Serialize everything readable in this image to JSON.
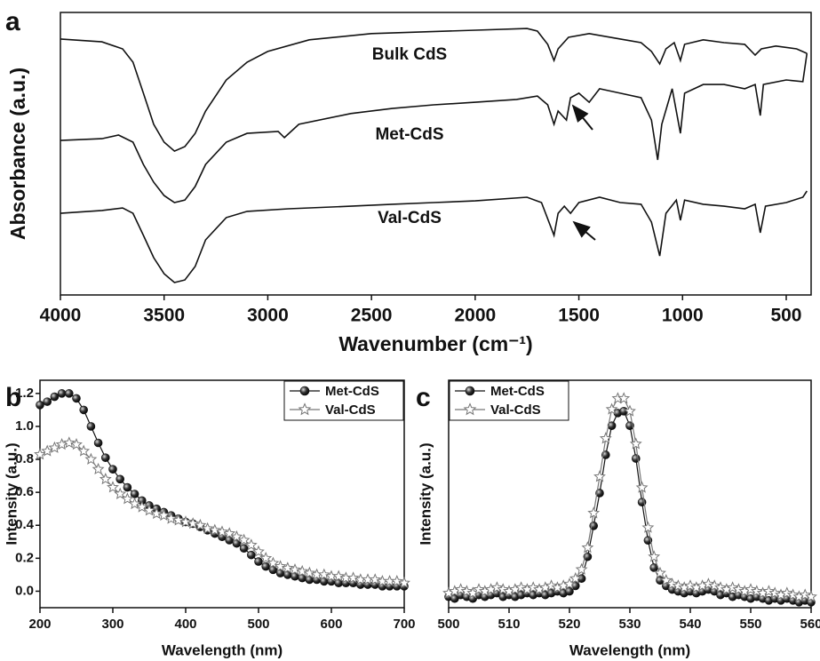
{
  "chart_data": [
    {
      "type": "line",
      "panel_label": "a",
      "xlabel": "Wavenumber (cm⁻¹)",
      "ylabel": "Absorbance (a.u.)",
      "xlim": [
        4000,
        380
      ],
      "ylim": [
        0,
        10
      ],
      "xticks": [
        4000,
        3500,
        3000,
        2500,
        2000,
        1500,
        1000,
        500
      ],
      "series": [
        {
          "name": "Bulk CdS",
          "color": "#111111",
          "x": [
            4000,
            3800,
            3700,
            3650,
            3600,
            3550,
            3500,
            3450,
            3400,
            3350,
            3300,
            3200,
            3100,
            3000,
            2800,
            2500,
            2000,
            1750,
            1700,
            1650,
            1620,
            1600,
            1550,
            1450,
            1300,
            1200,
            1150,
            1110,
            1080,
            1040,
            1010,
            990,
            900,
            800,
            700,
            650,
            620,
            550,
            450,
            400
          ],
          "values": [
            9.06,
            8.96,
            8.71,
            8.24,
            7.14,
            6.04,
            5.41,
            5.09,
            5.25,
            5.72,
            6.51,
            7.61,
            8.24,
            8.62,
            9.03,
            9.25,
            9.37,
            9.43,
            9.34,
            8.87,
            8.3,
            8.71,
            9.12,
            9.25,
            9.06,
            8.93,
            8.62,
            8.18,
            8.71,
            8.93,
            8.3,
            8.87,
            9.03,
            8.93,
            8.87,
            8.49,
            8.71,
            8.81,
            8.71,
            8.55
          ]
        },
        {
          "name": "Met-CdS",
          "color": "#111111",
          "x": [
            4000,
            3800,
            3720,
            3650,
            3600,
            3550,
            3500,
            3450,
            3400,
            3350,
            3300,
            3200,
            3100,
            2950,
            2920,
            2850,
            2600,
            2400,
            2200,
            2000,
            1800,
            1700,
            1650,
            1620,
            1600,
            1560,
            1540,
            1500,
            1450,
            1400,
            1300,
            1200,
            1150,
            1120,
            1100,
            1050,
            1010,
            990,
            900,
            800,
            700,
            650,
            625,
            610,
            500,
            420,
            400
          ],
          "values": [
            5.47,
            5.53,
            5.66,
            5.41,
            4.62,
            3.99,
            3.52,
            3.27,
            3.36,
            3.84,
            4.62,
            5.41,
            5.72,
            5.79,
            5.57,
            6.04,
            6.42,
            6.6,
            6.73,
            6.82,
            6.92,
            7.04,
            6.73,
            6.04,
            6.51,
            6.19,
            6.98,
            7.14,
            6.82,
            7.3,
            7.14,
            6.98,
            6.19,
            4.78,
            6.04,
            7.3,
            5.72,
            7.14,
            7.45,
            7.45,
            7.3,
            7.45,
            6.35,
            7.45,
            7.61,
            7.55,
            8.55
          ]
        },
        {
          "name": "Val-CdS",
          "color": "#111111",
          "x": [
            4000,
            3800,
            3700,
            3650,
            3600,
            3550,
            3500,
            3450,
            3400,
            3350,
            3300,
            3200,
            3100,
            2900,
            2600,
            2400,
            2200,
            2000,
            1750,
            1680,
            1620,
            1600,
            1570,
            1540,
            1500,
            1400,
            1300,
            1200,
            1150,
            1110,
            1080,
            1030,
            1010,
            990,
            900,
            800,
            700,
            650,
            625,
            600,
            500,
            420,
            400
          ],
          "values": [
            2.89,
            2.99,
            3.08,
            2.89,
            2.11,
            1.32,
            0.75,
            0.44,
            0.53,
            1.01,
            1.95,
            2.74,
            2.96,
            3.05,
            3.14,
            3.21,
            3.27,
            3.33,
            3.46,
            3.27,
            2.11,
            2.89,
            3.14,
            2.89,
            3.27,
            3.46,
            3.27,
            3.21,
            2.58,
            1.38,
            2.89,
            3.36,
            2.64,
            3.36,
            3.21,
            3.14,
            3.05,
            3.21,
            2.2,
            3.14,
            3.27,
            3.46,
            3.68
          ]
        }
      ]
    },
    {
      "type": "line",
      "panel_label": "b",
      "xlabel": "Wavelength (nm)",
      "ylabel": "Intensity (a.u.)",
      "xlim": [
        200,
        700
      ],
      "ylim": [
        -0.1,
        1.28
      ],
      "xticks": [
        200,
        300,
        400,
        500,
        600,
        700
      ],
      "yticks": [
        {
          "value": 0,
          "label": "0.0"
        },
        0.2,
        0.4,
        0.6,
        0.8,
        {
          "value": 1,
          "label": "1.0"
        },
        1.2
      ],
      "legend": "upper right",
      "x": [
        200,
        210,
        220,
        230,
        240,
        250,
        260,
        270,
        280,
        290,
        300,
        310,
        320,
        330,
        340,
        350,
        360,
        370,
        380,
        390,
        400,
        410,
        420,
        430,
        440,
        450,
        460,
        470,
        480,
        490,
        500,
        510,
        520,
        530,
        540,
        550,
        560,
        570,
        580,
        590,
        600,
        610,
        620,
        630,
        640,
        650,
        660,
        670,
        680,
        690,
        700
      ],
      "series": [
        {
          "name": "Met-CdS",
          "color": "#111111",
          "marker": "circle",
          "values": [
            1.13,
            1.15,
            1.18,
            1.2,
            1.2,
            1.17,
            1.1,
            1.0,
            0.9,
            0.81,
            0.74,
            0.68,
            0.63,
            0.59,
            0.55,
            0.52,
            0.5,
            0.48,
            0.46,
            0.44,
            0.42,
            0.41,
            0.39,
            0.37,
            0.35,
            0.33,
            0.31,
            0.29,
            0.26,
            0.22,
            0.18,
            0.15,
            0.13,
            0.11,
            0.1,
            0.09,
            0.08,
            0.07,
            0.07,
            0.06,
            0.06,
            0.05,
            0.05,
            0.05,
            0.04,
            0.04,
            0.04,
            0.03,
            0.03,
            0.03,
            0.03
          ]
        },
        {
          "name": "Val-CdS",
          "color": "#777777",
          "marker": "star",
          "values": [
            0.83,
            0.85,
            0.87,
            0.89,
            0.9,
            0.89,
            0.85,
            0.8,
            0.74,
            0.68,
            0.63,
            0.59,
            0.56,
            0.53,
            0.51,
            0.49,
            0.47,
            0.46,
            0.44,
            0.43,
            0.42,
            0.41,
            0.4,
            0.38,
            0.37,
            0.36,
            0.35,
            0.33,
            0.31,
            0.28,
            0.24,
            0.2,
            0.17,
            0.15,
            0.14,
            0.13,
            0.12,
            0.11,
            0.1,
            0.1,
            0.09,
            0.09,
            0.08,
            0.08,
            0.07,
            0.07,
            0.07,
            0.06,
            0.06,
            0.06,
            0.05
          ]
        }
      ]
    },
    {
      "type": "line",
      "panel_label": "c",
      "xlabel": "Wavelength (nm)",
      "ylabel": "Intensity (a.u.)",
      "xlim": [
        500,
        560
      ],
      "ylim": [
        0,
        1.25
      ],
      "xticks": [
        500,
        510,
        520,
        530,
        540,
        550,
        560
      ],
      "legend": "upper left",
      "x": [
        500,
        501,
        502,
        503,
        504,
        505,
        506,
        507,
        508,
        509,
        510,
        511,
        512,
        513,
        514,
        515,
        516,
        517,
        518,
        519,
        520,
        521,
        522,
        523,
        524,
        525,
        526,
        527,
        528,
        529,
        530,
        531,
        532,
        533,
        534,
        535,
        536,
        537,
        538,
        539,
        540,
        541,
        542,
        543,
        544,
        545,
        546,
        547,
        548,
        549,
        550,
        551,
        552,
        553,
        554,
        555,
        556,
        557,
        558,
        559,
        560
      ],
      "series": [
        {
          "name": "Met-CdS",
          "color": "#111111",
          "marker": "circle",
          "values": [
            0.06,
            0.05,
            0.07,
            0.06,
            0.05,
            0.07,
            0.06,
            0.07,
            0.08,
            0.06,
            0.07,
            0.06,
            0.07,
            0.08,
            0.07,
            0.08,
            0.07,
            0.08,
            0.09,
            0.08,
            0.09,
            0.12,
            0.16,
            0.28,
            0.45,
            0.63,
            0.84,
            1.0,
            1.07,
            1.08,
            1.0,
            0.82,
            0.58,
            0.37,
            0.22,
            0.15,
            0.12,
            0.1,
            0.09,
            0.08,
            0.09,
            0.08,
            0.09,
            0.1,
            0.09,
            0.07,
            0.08,
            0.06,
            0.07,
            0.06,
            0.05,
            0.06,
            0.05,
            0.04,
            0.05,
            0.04,
            0.05,
            0.04,
            0.03,
            0.04,
            0.03
          ]
        },
        {
          "name": "Val-CdS",
          "color": "#777777",
          "marker": "star",
          "values": [
            0.08,
            0.09,
            0.1,
            0.09,
            0.08,
            0.1,
            0.09,
            0.1,
            0.11,
            0.1,
            0.09,
            0.1,
            0.11,
            0.1,
            0.11,
            0.1,
            0.11,
            0.12,
            0.11,
            0.12,
            0.13,
            0.16,
            0.21,
            0.33,
            0.52,
            0.72,
            0.93,
            1.09,
            1.15,
            1.15,
            1.08,
            0.9,
            0.66,
            0.44,
            0.28,
            0.19,
            0.15,
            0.13,
            0.12,
            0.11,
            0.12,
            0.11,
            0.12,
            0.13,
            0.12,
            0.11,
            0.1,
            0.11,
            0.1,
            0.09,
            0.1,
            0.09,
            0.08,
            0.09,
            0.08,
            0.07,
            0.08,
            0.07,
            0.06,
            0.07,
            0.06
          ]
        }
      ]
    }
  ]
}
